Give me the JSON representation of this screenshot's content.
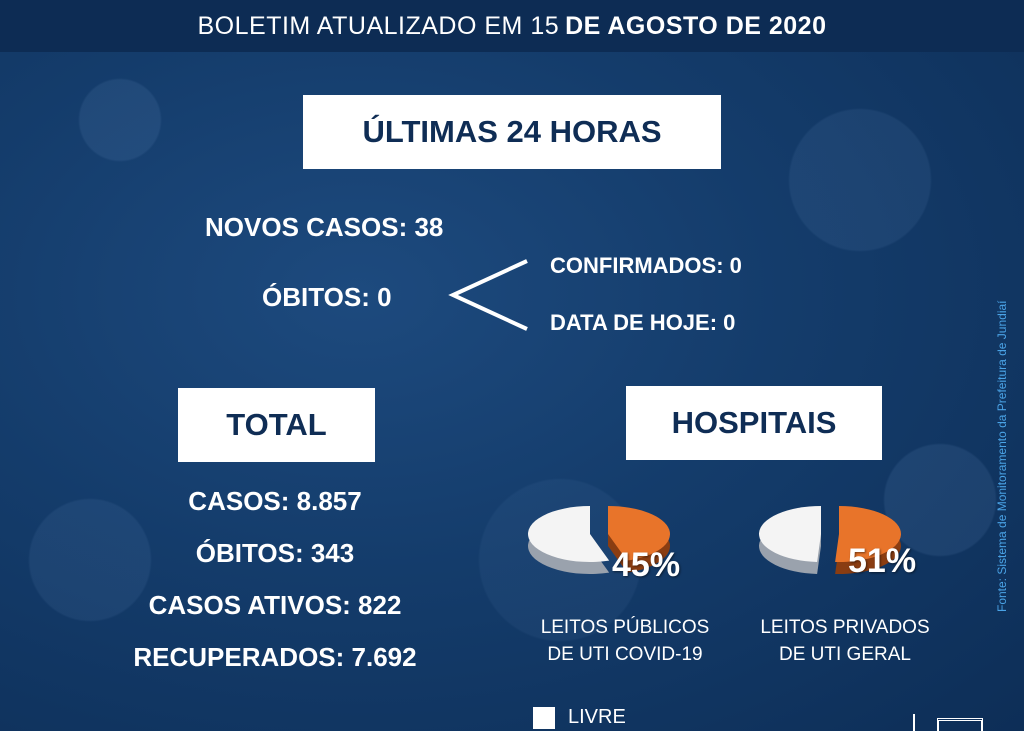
{
  "header": {
    "prefix": "BOLETIM  ATUALIZADO EM 15",
    "date_bold": "DE AGOSTO DE 2020"
  },
  "last24": {
    "title": "ÚLTIMAS 24 HORAS",
    "novos_casos": "NOVOS CASOS: 38",
    "obitos": "ÓBITOS:  0",
    "confirmados": "CONFIRMADOS: 0",
    "data_de_hoje": "DATA DE HOJE: 0"
  },
  "total": {
    "title": "TOTAL",
    "casos": "CASOS: 8.857",
    "obitos": "ÓBITOS: 343",
    "casos_ativos": "CASOS ATIVOS: 822",
    "recuperados": "RECUPERADOS: 7.692"
  },
  "hospitais": {
    "title": "HOSPITAIS",
    "publicos": {
      "percent_label": "45%",
      "occupied_fraction": 0.45,
      "caption_line1": "LEITOS PÚBLICOS",
      "caption_line2": "DE UTI COVID-19"
    },
    "privados": {
      "percent_label": "51%",
      "occupied_fraction": 0.51,
      "caption_line1": "LEITOS PRIVADOS",
      "caption_line2": "DE UTI GERAL"
    },
    "legend_livre": "LIVRE"
  },
  "source": "Fonte: Sistema de Monitoramento da Prefeitura de Jundiaí",
  "colors": {
    "navy": "#0f2d55",
    "occupied": "#e8742a",
    "free": "#f4f4f4",
    "source_text": "#4aa3e6"
  }
}
